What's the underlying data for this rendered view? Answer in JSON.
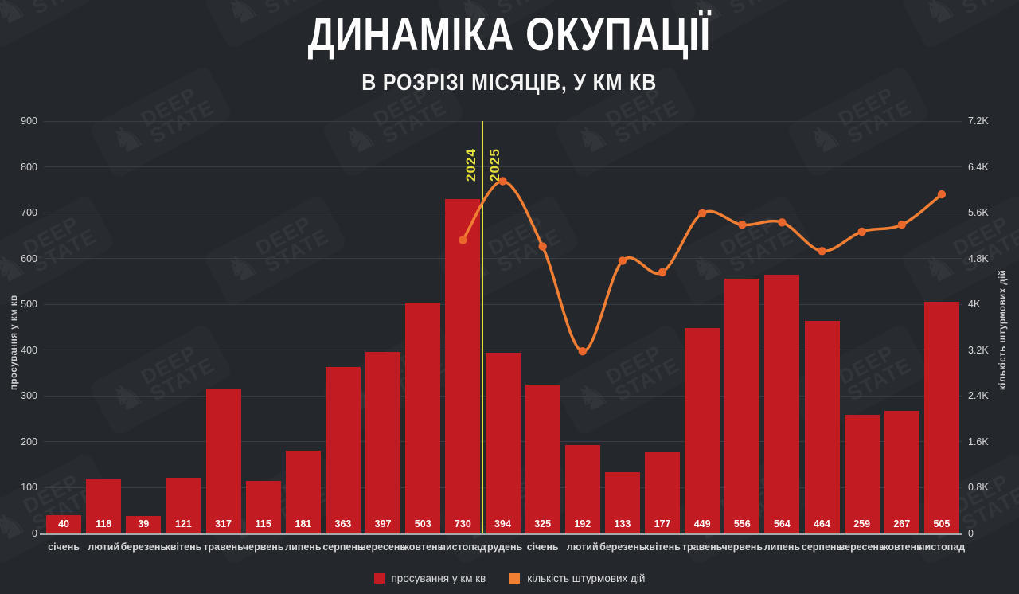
{
  "title": "ДИНАМІКА ОКУПАЦІЇ",
  "subtitle": "В РОЗРІЗІ МІСЯЦІВ, У КМ КВ",
  "watermark": {
    "knight": "♞",
    "line1": "DEEP",
    "line2": "STATE"
  },
  "divider": {
    "left_year": "2024",
    "right_year": "2025"
  },
  "colors": {
    "background": "#24272c",
    "bar": "#c21b21",
    "line": "#f07e33",
    "marker": "#ea672c",
    "divider_yellow": "#e4df3a",
    "grid": "#3a3e44",
    "axis_text": "#d6d7d9"
  },
  "legend": [
    {
      "label": "просування у км кв",
      "color": "#c21b21"
    },
    {
      "label": "кількість штурмових дій",
      "color": "#f07e33"
    }
  ],
  "chart_data": {
    "type": "bar",
    "categories": [
      "січень",
      "лютий",
      "березень",
      "квітень",
      "травень",
      "червень",
      "липень",
      "серпень",
      "вересень",
      "жовтень",
      "листопад",
      "грудень",
      "січень",
      "лютий",
      "березень",
      "квітень",
      "травень",
      "червень",
      "липень",
      "серпень",
      "вересень",
      "жовтень",
      "листопад"
    ],
    "series": [
      {
        "name": "просування у км кв",
        "type": "bar",
        "axis": "left",
        "values": [
          40,
          118,
          39,
          121,
          317,
          115,
          181,
          363,
          397,
          503,
          730,
          394,
          325,
          192,
          133,
          177,
          449,
          556,
          564,
          464,
          259,
          267,
          505
        ]
      },
      {
        "name": "кількість штурмових дій",
        "type": "line",
        "axis": "right",
        "start_index": 10,
        "values": [
          5120,
          6150,
          5010,
          3180,
          4760,
          4560,
          5590,
          5390,
          5430,
          4930,
          5270,
          5390,
          5920
        ]
      }
    ],
    "left_axis": {
      "label": "просування у км кв",
      "min": 0,
      "max": 900,
      "step": 100,
      "ticks": [
        "0",
        "100",
        "200",
        "300",
        "400",
        "500",
        "600",
        "700",
        "800",
        "900"
      ]
    },
    "right_axis": {
      "label": "кількість штурмових дій",
      "min": 0,
      "max": 7200,
      "step": 800,
      "ticks": [
        "0",
        "0.8K",
        "1.6K",
        "2.4K",
        "3.2K",
        "4K",
        "4.8K",
        "5.6K",
        "6.4K",
        "7.2K"
      ]
    },
    "year_break_after_index": 10,
    "grid": true,
    "legend_position": "bottom"
  }
}
